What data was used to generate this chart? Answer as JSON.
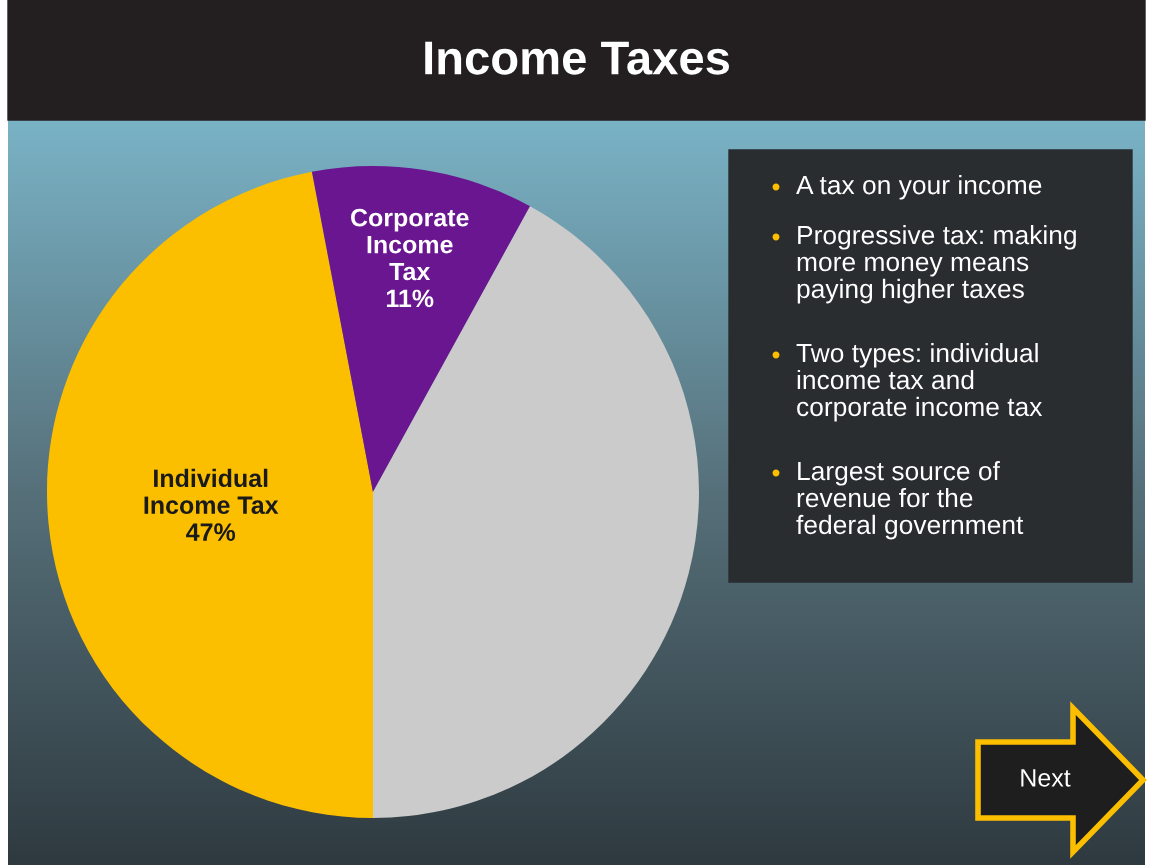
{
  "chart_data": {
    "type": "pie",
    "title": "Income Taxes",
    "categories": [
      "Individual\nIncome Tax",
      "Corporate\nIncome\nTax",
      null
    ],
    "values": [
      47,
      11,
      42
    ],
    "colors": [
      "#fbbf00",
      "#6a1690",
      "#cbcbcb"
    ],
    "value_labels": [
      "47%",
      "11%",
      null
    ],
    "annotations": [
      "A tax on your income",
      "Progressive tax: making\nmore money means\npaying higher taxes",
      "Two types: individual\nincome tax and\ncorporate income tax",
      "Largest source of\nrevenue for the\nfederal government",
      "Next"
    ]
  }
}
